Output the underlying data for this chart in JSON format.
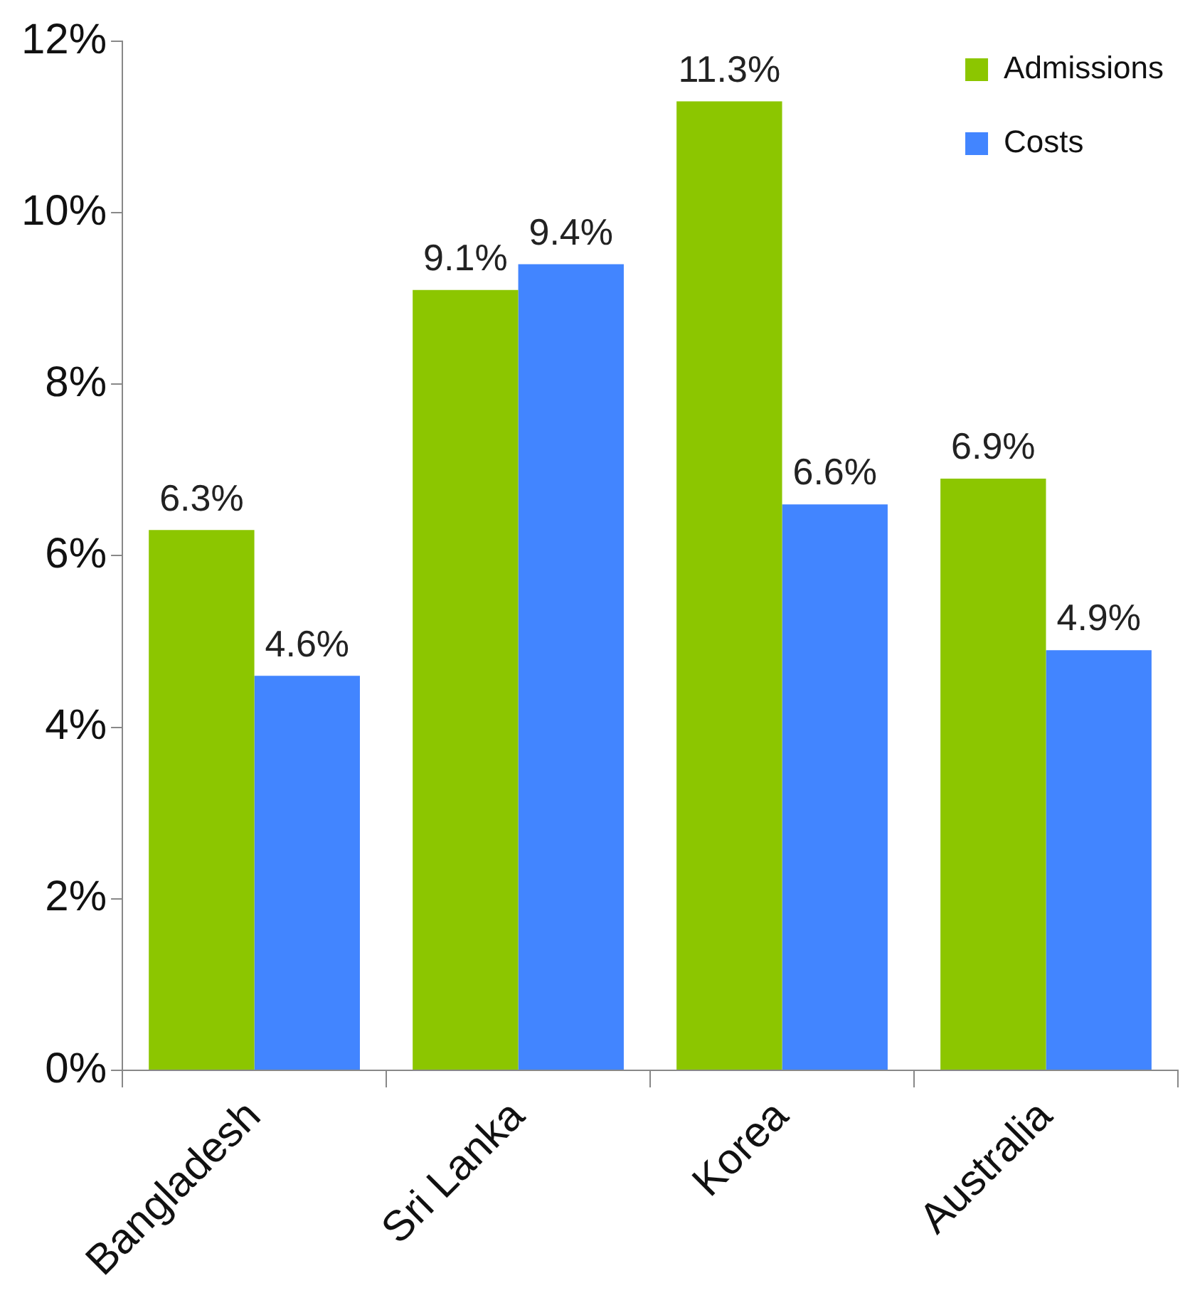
{
  "chart_data": {
    "type": "bar",
    "categories": [
      "Bangladesh",
      "Sri Lanka",
      "Korea",
      "Australia"
    ],
    "series": [
      {
        "name": "Admissions",
        "color": "#8cc600",
        "values": [
          6.3,
          9.1,
          11.3,
          6.9
        ],
        "value_labels": [
          "6.3%",
          "9.1%",
          "11.3%",
          "6.9%"
        ]
      },
      {
        "name": "Costs",
        "color": "#4285ff",
        "values": [
          4.6,
          9.4,
          6.6,
          4.9
        ],
        "value_labels": [
          "4.6%",
          "9.4%",
          "6.6%",
          "4.9%"
        ]
      }
    ],
    "ylim": [
      0,
      12
    ],
    "yticks": [
      {
        "value": 0,
        "label": "0%"
      },
      {
        "value": 2,
        "label": "2%"
      },
      {
        "value": 4,
        "label": "4%"
      },
      {
        "value": 6,
        "label": "6%"
      },
      {
        "value": 8,
        "label": "8%"
      },
      {
        "value": 10,
        "label": "10%"
      },
      {
        "value": 12,
        "label": "12%"
      }
    ],
    "grid": false,
    "legend": "top right"
  }
}
